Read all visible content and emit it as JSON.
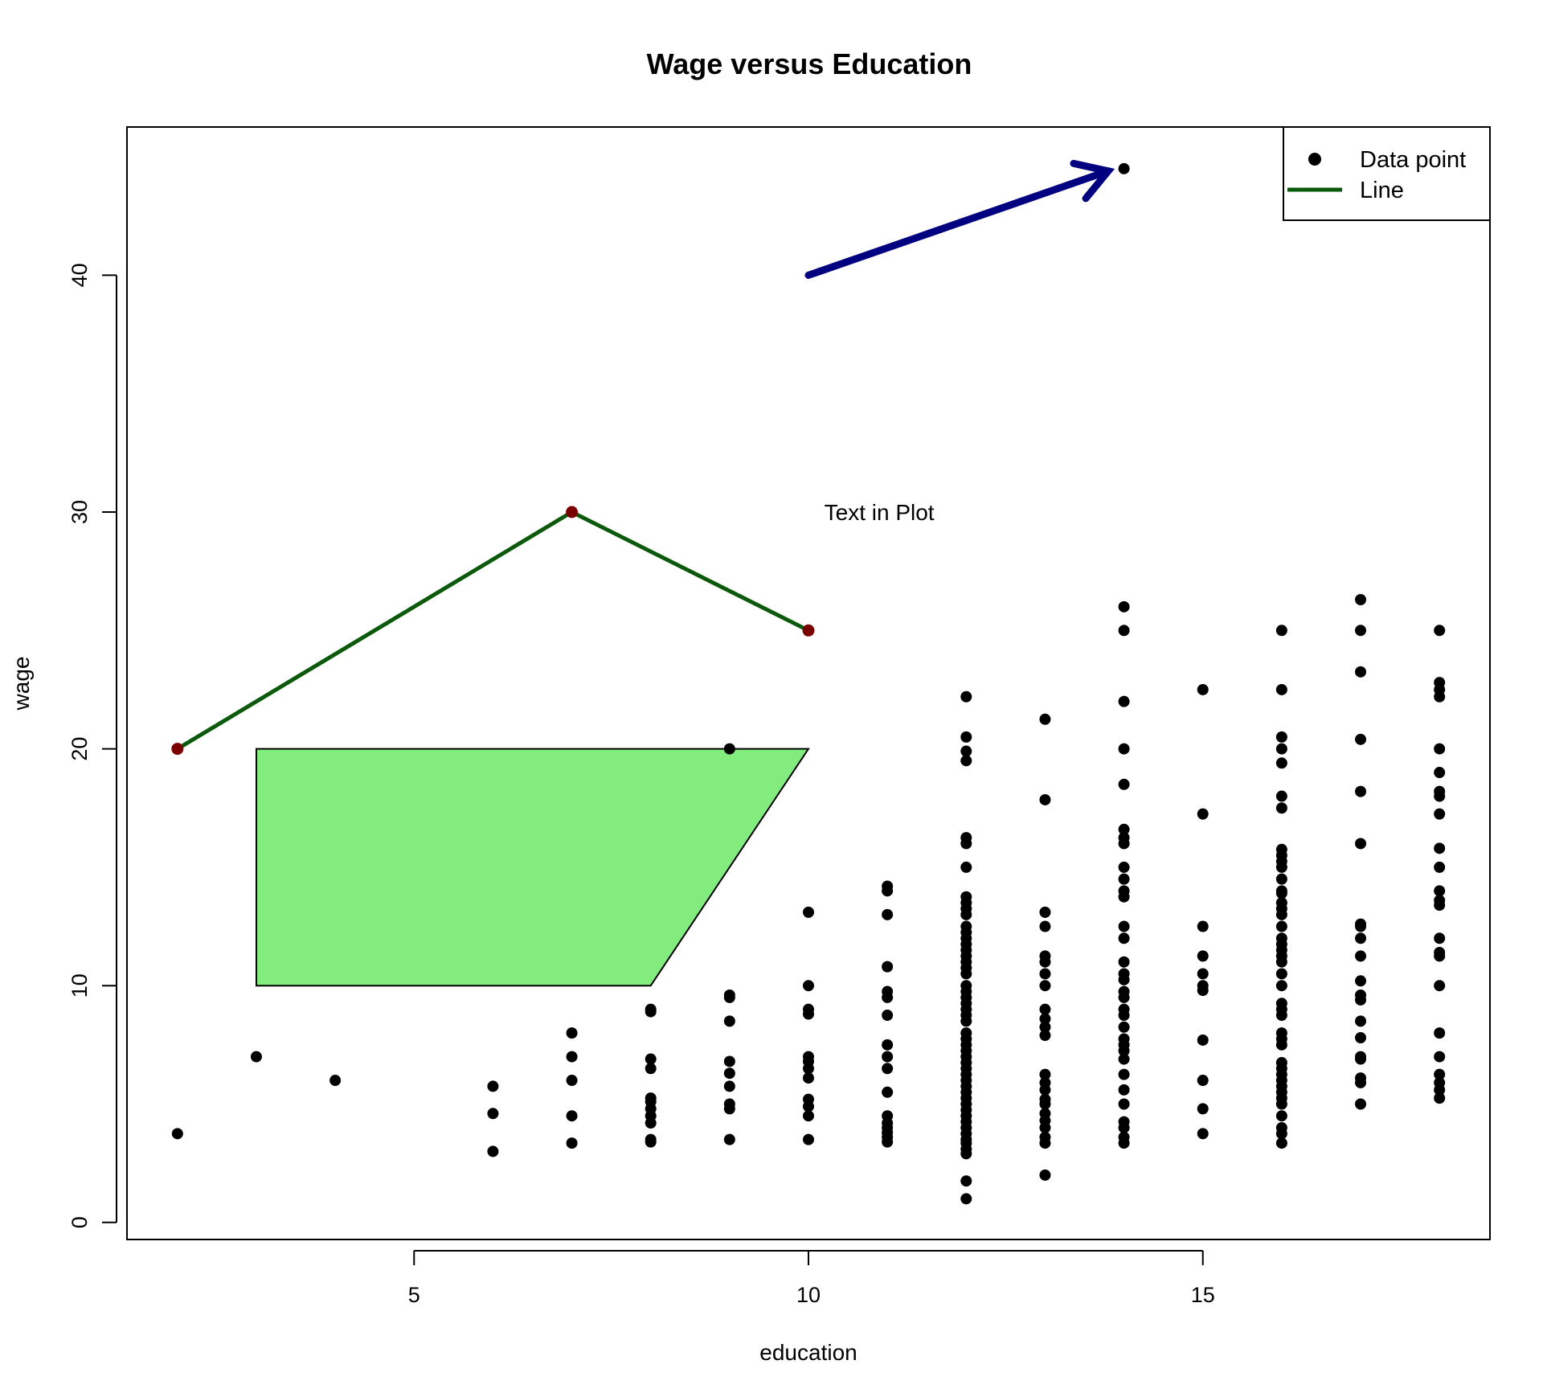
{
  "chart_data": {
    "type": "scatter",
    "title": "Wage versus Education",
    "xlabel": "education",
    "ylabel": "wage",
    "xlim": [
      1.36,
      18.64
    ],
    "ylim": [
      -0.72,
      46.26
    ],
    "xticks": [
      5,
      10,
      15
    ],
    "yticks": [
      0,
      10,
      20,
      30,
      40
    ],
    "grid": false,
    "legend": {
      "placement": "top-right",
      "entries": [
        {
          "label": "Data point",
          "kind": "point",
          "color": "#000000"
        },
        {
          "label": "Line",
          "kind": "line",
          "color": "#0b5a0b"
        }
      ]
    },
    "colors": {
      "points": "#000000",
      "line": "#0b5a0b",
      "line_markers": "#7a0000",
      "polygon_fill": "#82ec7e",
      "polygon_border": "#000000",
      "arrow": "#000080"
    },
    "series": [
      {
        "kind": "points",
        "groups": [
          {
            "x": 2,
            "y": [
              3.75,
              20
            ]
          },
          {
            "x": 3,
            "y": [
              7
            ]
          },
          {
            "x": 4,
            "y": [
              6
            ]
          },
          {
            "x": 6,
            "y": [
              3,
              4.6,
              5.75
            ]
          },
          {
            "x": 7,
            "y": [
              3.35,
              4.5,
              6,
              7,
              8
            ]
          },
          {
            "x": 8,
            "y": [
              3.4,
              3.5,
              4.2,
              4.5,
              4.8,
              5.1,
              5.25,
              6.5,
              6.9,
              8.9,
              9
            ]
          },
          {
            "x": 9,
            "y": [
              3.5,
              4.8,
              5,
              5.75,
              6.3,
              6.8,
              8.5,
              9.5,
              9.6,
              20
            ]
          },
          {
            "x": 10,
            "y": [
              3.5,
              4.5,
              4.9,
              5.2,
              6.1,
              6.5,
              6.8,
              7,
              8.8,
              9,
              10,
              13.1
            ]
          },
          {
            "x": 11,
            "y": [
              3.4,
              3.6,
              3.8,
              4,
              4.2,
              4.5,
              5.5,
              6.5,
              7,
              7.5,
              8.75,
              9.5,
              9.75,
              10.8,
              13,
              14,
              14.2
            ]
          },
          {
            "x": 12,
            "y": [
              1,
              1.75,
              2.9,
              3.1,
              3.35,
              3.5,
              3.75,
              4,
              4.25,
              4.5,
              4.75,
              5,
              5.25,
              5.5,
              5.75,
              6,
              6.25,
              6.5,
              6.75,
              7,
              7.25,
              7.5,
              7.75,
              8,
              8.5,
              8.75,
              9,
              9.25,
              9.5,
              9.75,
              10,
              10.5,
              10.75,
              11,
              11.25,
              11.5,
              11.75,
              12,
              12.25,
              12.5,
              13,
              13.25,
              13.5,
              13.75,
              15,
              16,
              16.25,
              19.5,
              19.9,
              20.5,
              22.2
            ]
          },
          {
            "x": 13,
            "y": [
              2,
              3.35,
              3.6,
              4,
              4.3,
              4.6,
              5,
              5.2,
              5.6,
              5.9,
              6.25,
              7.9,
              8.25,
              8.6,
              9,
              10,
              10.5,
              11,
              11.25,
              12.5,
              13.1,
              17.85,
              21.25
            ]
          },
          {
            "x": 14,
            "y": [
              3.35,
              3.6,
              4,
              4.25,
              5,
              5.6,
              6.25,
              6.9,
              7.25,
              7.5,
              7.75,
              8.25,
              8.75,
              9,
              9.5,
              9.75,
              10.25,
              10.5,
              11,
              12,
              12.5,
              13.75,
              14,
              14.5,
              15,
              16,
              16.25,
              16.6,
              18.5,
              20,
              22,
              25,
              26,
              44.5
            ]
          },
          {
            "x": 15,
            "y": [
              3.75,
              4.8,
              6,
              7.7,
              9.8,
              10,
              10.5,
              11.25,
              12.5,
              17.25,
              22.5
            ]
          },
          {
            "x": 16,
            "y": [
              3.35,
              3.75,
              4,
              4.5,
              5,
              5.25,
              5.5,
              5.75,
              6,
              6.25,
              6.5,
              6.75,
              7.5,
              7.75,
              8,
              8.75,
              9,
              9.25,
              10,
              10.5,
              11,
              11.25,
              11.5,
              11.75,
              12,
              12.5,
              13,
              13.25,
              13.5,
              13.9,
              14,
              14.5,
              15,
              15.25,
              15.5,
              15.75,
              17.5,
              18,
              19.4,
              20,
              20.5,
              22.5,
              25
            ]
          },
          {
            "x": 17,
            "y": [
              5,
              5.9,
              6.1,
              6.9,
              7,
              7.8,
              8.5,
              9.4,
              9.6,
              10.2,
              11.25,
              12,
              12.5,
              12.6,
              16,
              18.2,
              20.4,
              23.25,
              25,
              26.3
            ]
          },
          {
            "x": 18,
            "y": [
              5.25,
              5.6,
              5.9,
              6.25,
              7,
              8,
              10,
              11.25,
              11.4,
              12,
              13.4,
              13.6,
              14,
              15,
              15.8,
              17.25,
              18,
              18.2,
              19,
              20,
              22.2,
              22.5,
              22.8,
              25
            ]
          }
        ]
      },
      {
        "kind": "line",
        "x": [
          2,
          7,
          10
        ],
        "y": [
          20,
          30,
          25
        ]
      }
    ],
    "annotations": [
      {
        "kind": "text",
        "text": "Text in Plot",
        "x": 10.2,
        "y": 30
      },
      {
        "kind": "arrow",
        "from": [
          10,
          40
        ],
        "to": [
          13.8,
          44.4
        ]
      },
      {
        "kind": "polygon",
        "points": [
          [
            3,
            10
          ],
          [
            3,
            20
          ],
          [
            10,
            20
          ],
          [
            8,
            10
          ]
        ]
      }
    ]
  }
}
